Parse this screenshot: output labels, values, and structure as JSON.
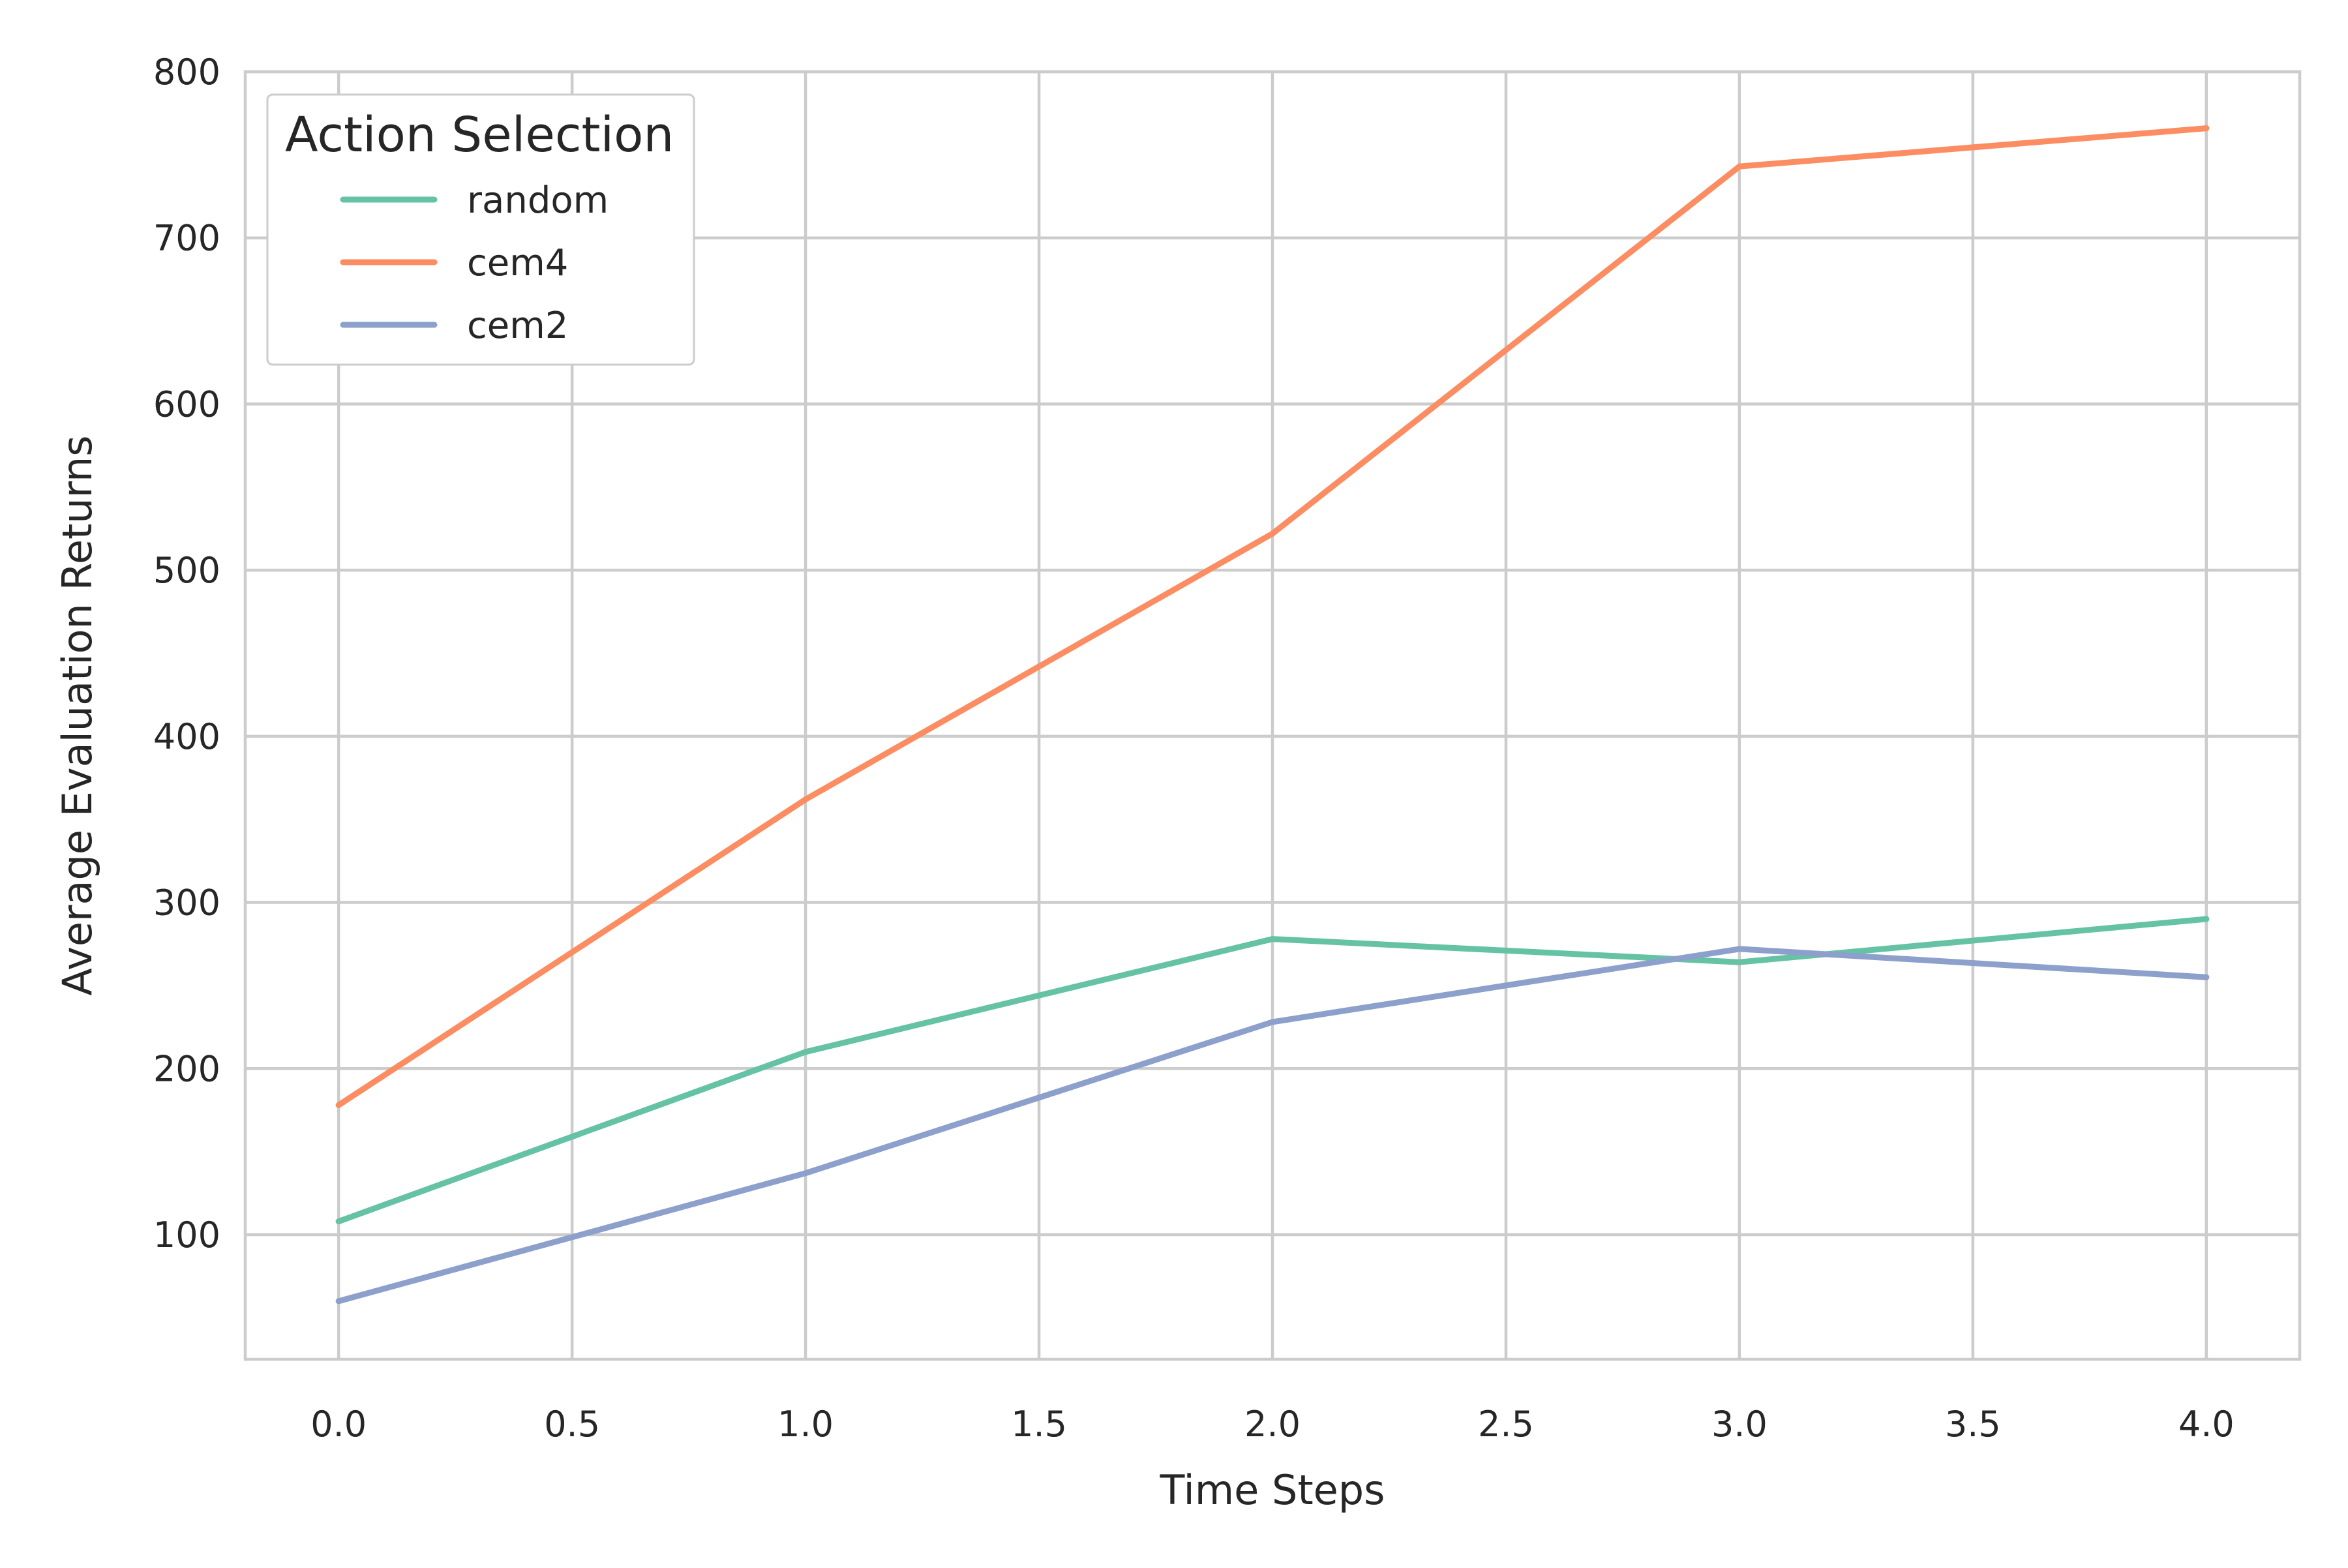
{
  "chart_data": {
    "type": "line",
    "xlabel": "Time Steps",
    "ylabel": "Average Evaluation Returns",
    "x": [
      0,
      1,
      2,
      3,
      4
    ],
    "xlim": [
      -0.2,
      4.2
    ],
    "ylim": [
      25,
      800
    ],
    "xticks": [
      0.0,
      0.5,
      1.0,
      1.5,
      2.0,
      2.5,
      3.0,
      3.5,
      4.0
    ],
    "xtick_labels": [
      "0.0",
      "0.5",
      "1.0",
      "1.5",
      "2.0",
      "2.5",
      "3.0",
      "3.5",
      "4.0"
    ],
    "yticks": [
      100,
      200,
      300,
      400,
      500,
      600,
      700,
      800
    ],
    "ytick_labels": [
      "100",
      "200",
      "300",
      "400",
      "500",
      "600",
      "700",
      "800"
    ],
    "grid": true,
    "legend": {
      "title": "Action Selection",
      "placement": "top-left"
    },
    "series": [
      {
        "name": "random",
        "color": "#66c2a5",
        "values": [
          108,
          210,
          278,
          264,
          290
        ]
      },
      {
        "name": "cem4",
        "color": "#fc8d62",
        "values": [
          178,
          362,
          522,
          743,
          766
        ]
      },
      {
        "name": "cem2",
        "color": "#8da0cb",
        "values": [
          60,
          137,
          228,
          272,
          255
        ]
      }
    ]
  }
}
